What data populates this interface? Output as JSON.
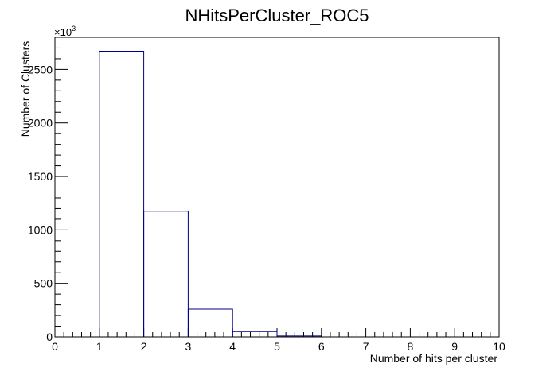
{
  "chart_data": {
    "type": "bar",
    "title": "NHitsPerCluster_ROC5",
    "xlabel": "Number of hits per cluster",
    "ylabel": "Number of Clusters",
    "y_multiplier": "×10",
    "y_multiplier_exp": "3",
    "xlim": [
      0,
      10
    ],
    "ylim": [
      0,
      2800
    ],
    "x_ticks": [
      0,
      1,
      2,
      3,
      4,
      5,
      6,
      7,
      8,
      9,
      10
    ],
    "y_ticks": [
      0,
      500,
      1000,
      1500,
      2000,
      2500
    ],
    "bin_edges": [
      0,
      1,
      2,
      3,
      4,
      5,
      6,
      7,
      8,
      9,
      10
    ],
    "values": [
      0,
      2670,
      1175,
      260,
      50,
      8,
      0,
      0,
      0,
      0
    ],
    "line_color": "#000080",
    "grid": false,
    "legend": "none"
  }
}
